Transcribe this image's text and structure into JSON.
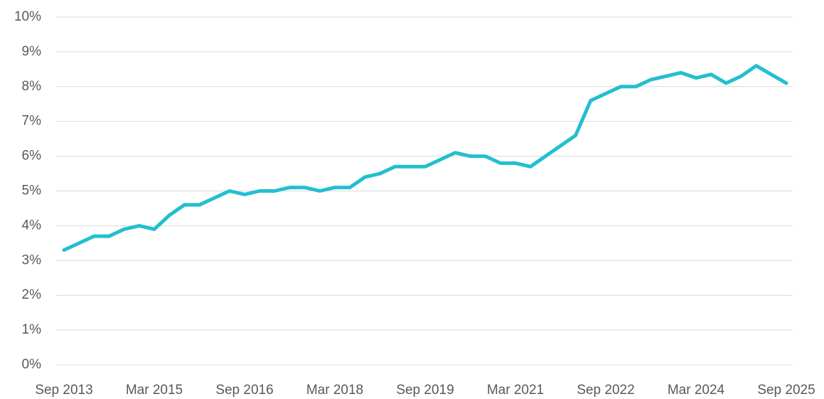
{
  "chart_data": {
    "type": "line",
    "categories": [
      "Sep 2013",
      null,
      null,
      null,
      null,
      null,
      "Mar 2015",
      null,
      null,
      null,
      null,
      null,
      "Sep 2016",
      null,
      null,
      null,
      null,
      null,
      "Mar 2018",
      null,
      null,
      null,
      null,
      null,
      "Sep 2019",
      null,
      null,
      null,
      null,
      null,
      "Mar 2021",
      null,
      null,
      null,
      null,
      null,
      "Sep 2022",
      null,
      null,
      null,
      null,
      null,
      "Mar 2024",
      null,
      null,
      null,
      null,
      null,
      "Sep 2025"
    ],
    "series": [
      {
        "color": "#22bfcf",
        "values": [
          3.3,
          3.5,
          3.7,
          3.7,
          3.9,
          4.0,
          3.9,
          4.3,
          4.6,
          4.6,
          4.8,
          5.0,
          4.9,
          5.0,
          5.0,
          5.1,
          5.1,
          5.0,
          5.1,
          5.1,
          5.4,
          5.5,
          5.7,
          5.7,
          5.7,
          5.9,
          6.1,
          6.0,
          6.0,
          5.8,
          5.8,
          5.7,
          6.0,
          6.3,
          6.6,
          7.6,
          7.8,
          8.0,
          8.0,
          8.2,
          8.3,
          8.4,
          8.25,
          8.35,
          8.1,
          8.3,
          8.6,
          8.35,
          8.1
        ]
      }
    ],
    "ylim": [
      0,
      10
    ],
    "yticks": [
      {
        "value": 0,
        "label": "0%"
      },
      {
        "value": 1,
        "label": "1%"
      },
      {
        "value": 2,
        "label": "2%"
      },
      {
        "value": 3,
        "label": "3%"
      },
      {
        "value": 4,
        "label": "4%"
      },
      {
        "value": 5,
        "label": "5%"
      },
      {
        "value": 6,
        "label": "6%"
      },
      {
        "value": 7,
        "label": "7%"
      },
      {
        "value": 8,
        "label": "8%"
      },
      {
        "value": 9,
        "label": "9%"
      },
      {
        "value": 10,
        "label": "10%"
      }
    ],
    "grid": true
  }
}
